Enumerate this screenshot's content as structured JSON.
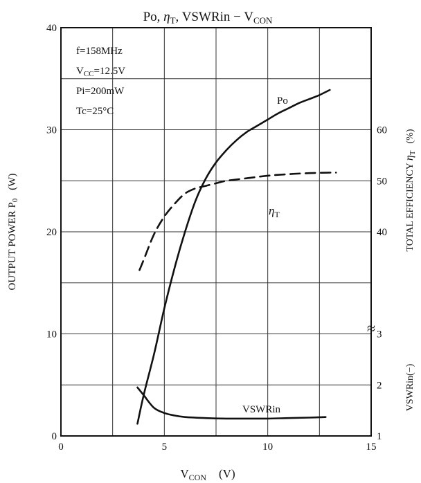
{
  "chart_data": {
    "type": "line",
    "title": "Po, ηT, VSWRin − VCON",
    "title_parts": {
      "t1": "Po, ",
      "eta": "η",
      "t_sub": "T",
      "t2": ", VSWRin − V",
      "con_sub": "CON"
    },
    "xlabel": "VCON (V)",
    "xlabel_parts": {
      "v": "V",
      "sub": "CON",
      "unit": "(V)"
    },
    "xlim": [
      0,
      15
    ],
    "x_ticks": [
      "0",
      "5",
      "10",
      "15"
    ],
    "y_left": {
      "label": "OUTPUT POWER Po (W)",
      "label_parts": {
        "main": "OUTPUT POWER P",
        "sub": "0",
        "unit": "(W)"
      },
      "lim": [
        0,
        40
      ],
      "ticks": [
        "0",
        "10",
        "20",
        "30",
        "40"
      ]
    },
    "y_right_efficiency": {
      "label": "TOTAL EFFICIENCY ηT (%)",
      "label_parts": {
        "main": "TOTAL EFFICIENCY ",
        "eta": "η",
        "sub": "T",
        "unit": "(%)"
      },
      "ticks": [
        "40",
        "50",
        "60"
      ],
      "range": [
        30,
        70
      ]
    },
    "y_right_vswr": {
      "label": "VSWRin (−)",
      "label_parts": {
        "main": "VSWRin",
        "unit": "(−)"
      },
      "ticks": [
        "1",
        "2",
        "3"
      ],
      "range": [
        1,
        4
      ]
    },
    "axis_break_symbol": "≈",
    "conditions": [
      "f=158MHz",
      "VCC=12.5V",
      "Pi=200mW",
      "Tc=25°C"
    ],
    "conditions_parts": {
      "f": "f=158MHz",
      "vcc_v": "V",
      "vcc_sub": "CC",
      "vcc_rest": "=12.5V",
      "pi": "Pi=200mW",
      "tc": "Tc=25°C"
    },
    "grid": true,
    "series": [
      {
        "name": "Po",
        "axis": "left",
        "style": "solid",
        "x": [
          3.7,
          4.0,
          4.5,
          5.0,
          5.5,
          6.0,
          6.5,
          7.0,
          7.5,
          8.0,
          8.5,
          9.0,
          9.5,
          10.0,
          10.5,
          11.0,
          11.5,
          12.0,
          12.5,
          13.0
        ],
        "y": [
          1.2,
          4.0,
          8.0,
          12.5,
          16.5,
          20.0,
          23.0,
          25.2,
          26.8,
          28.0,
          29.0,
          29.8,
          30.4,
          31.0,
          31.6,
          32.1,
          32.6,
          33.0,
          33.4,
          33.9
        ]
      },
      {
        "name": "ηT",
        "name_parts": {
          "eta": "η",
          "sub": "T"
        },
        "axis": "right_efficiency",
        "style": "dashed",
        "x": [
          3.8,
          4.0,
          4.5,
          5.0,
          5.5,
          6.0,
          6.5,
          7.0,
          7.5,
          8.0,
          9.0,
          10.0,
          11.0,
          12.0,
          13.0,
          13.3
        ],
        "y": [
          32.5,
          34.5,
          39.5,
          43.0,
          45.5,
          47.5,
          48.5,
          49.0,
          49.5,
          50.0,
          50.5,
          51.0,
          51.3,
          51.5,
          51.6,
          51.6
        ]
      },
      {
        "name": "VSWRin",
        "axis": "right_vswr",
        "style": "solid",
        "x": [
          3.7,
          4.0,
          4.5,
          5.0,
          5.5,
          6.0,
          7.0,
          8.0,
          9.0,
          10.0,
          11.0,
          12.0,
          12.8
        ],
        "y": [
          1.95,
          1.8,
          1.55,
          1.45,
          1.4,
          1.37,
          1.35,
          1.34,
          1.34,
          1.34,
          1.35,
          1.36,
          1.37
        ]
      }
    ]
  }
}
